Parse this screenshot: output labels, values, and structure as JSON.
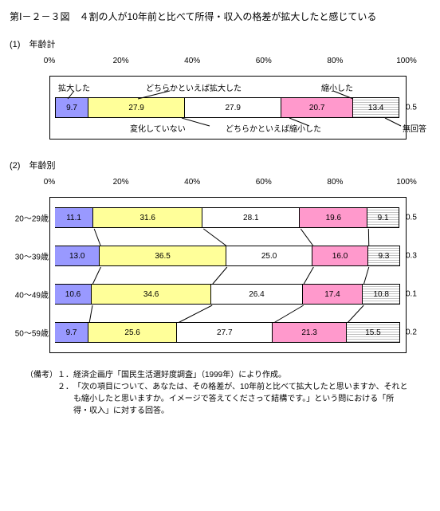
{
  "title": "第Ⅰ－２－３図　４割の人が10年前と比べて所得・収入の格差が拡大したと感じている",
  "axis": {
    "ticks": [
      "0%",
      "20%",
      "40%",
      "60%",
      "80%",
      "100%"
    ]
  },
  "colors": {
    "expanded": "#9999ff",
    "somewhat_expanded": "#ffff99",
    "no_change": "#ffffff",
    "somewhat_shrunk": "#ff99cc",
    "shrunk": "#c0c0c0",
    "border": "#000000",
    "background": "#ffffff"
  },
  "legend": {
    "expanded": "拡大した",
    "somewhat_expanded": "どちらかといえば拡大した",
    "no_change": "変化していない",
    "somewhat_shrunk": "どちらかといえば縮小した",
    "shrunk": "縮小した",
    "no_answer": "無回答"
  },
  "panel1": {
    "label": "(1)　年齢計",
    "row": {
      "values": [
        9.7,
        27.9,
        27.9,
        20.7,
        13.4
      ],
      "tail": "0.5"
    }
  },
  "panel2": {
    "label": "(2)　年齢別",
    "rows": [
      {
        "label": "20～29歳",
        "values": [
          11.1,
          31.6,
          28.1,
          19.6,
          9.1
        ],
        "tail": "0.5"
      },
      {
        "label": "30～39歳",
        "values": [
          13.0,
          36.5,
          25.0,
          16.0,
          9.3
        ],
        "tail": "0.3"
      },
      {
        "label": "40～49歳",
        "values": [
          10.6,
          34.6,
          26.4,
          17.4,
          10.8
        ],
        "tail": "0.1"
      },
      {
        "label": "50～59歳",
        "values": [
          9.7,
          25.6,
          27.7,
          21.3,
          15.5
        ],
        "tail": "0.2"
      }
    ]
  },
  "notes": {
    "prefix": "（備考）",
    "n1_num": "１．",
    "n1": "経済企画庁「国民生活選好度調査」（1999年）により作成。",
    "n2_num": "２．",
    "n2": "「次の項目について、あなたは、その格差が、10年前と比べて拡大したと思いますか、それとも縮小したと思いますか。イメージで答えてくださって結構です。」という問における「所得・収入」に対する回答。"
  }
}
